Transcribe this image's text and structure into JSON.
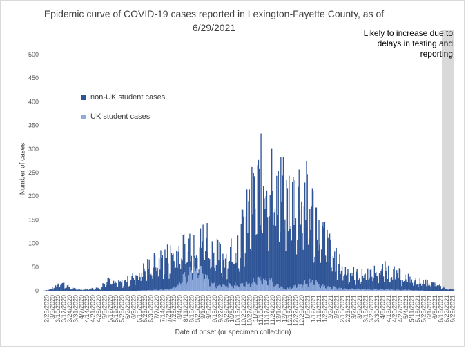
{
  "chart_data": {
    "type": "bar",
    "stacked": true,
    "title": "Epidemic curve of COVID-19 cases reported in Lexington-Fayette County, as of 6/29/2021",
    "ylabel": "Number of cases",
    "xlabel": "Date of onset (or specimen collection)",
    "ylim": [
      0,
      500
    ],
    "y_ticks": [
      0,
      50,
      100,
      150,
      200,
      250,
      300,
      350,
      400,
      450,
      500
    ],
    "x_tick_labels": [
      "2/25/2020",
      "3/3/2020",
      "3/10/2020",
      "3/17/2020",
      "3/24/2020",
      "3/31/2020",
      "4/7/2020",
      "4/14/2020",
      "4/21/2020",
      "4/28/2020",
      "5/5/2020",
      "5/12/2020",
      "5/19/2020",
      "5/26/2020",
      "6/2/2020",
      "6/9/2020",
      "6/16/2020",
      "6/23/2020",
      "6/30/2020",
      "7/7/2020",
      "7/14/2020",
      "7/21/2020",
      "7/28/2020",
      "8/4/2020",
      "8/11/2020",
      "8/18/2020",
      "8/25/2020",
      "9/1/2020",
      "9/8/2020",
      "9/15/2020",
      "9/22/2020",
      "9/29/2020",
      "10/6/2020",
      "10/13/2020",
      "10/20/2020",
      "10/27/2020",
      "11/3/2020",
      "11/10/2020",
      "11/17/2020",
      "11/24/2020",
      "12/1/2020",
      "12/8/2020",
      "12/15/2020",
      "12/22/2020",
      "12/29/2020",
      "1/5/2021",
      "1/12/2021",
      "1/19/2021",
      "1/26/2021",
      "2/2/2021",
      "2/9/2021",
      "2/16/2021",
      "2/23/2021",
      "3/2/2021",
      "3/9/2021",
      "3/16/2021",
      "3/23/2021",
      "3/30/2021",
      "4/6/2021",
      "4/13/2021",
      "4/20/2021",
      "4/27/2021",
      "5/4/2021",
      "5/11/2021",
      "5/18/2021",
      "5/25/2021",
      "6/1/2021",
      "6/8/2021",
      "6/15/2021",
      "6/22/2021",
      "6/29/2021"
    ],
    "series": [
      {
        "name": "non-UK student cases",
        "color": "#2f5597",
        "weekly_values": [
          0,
          2,
          8,
          18,
          10,
          5,
          3,
          3,
          4,
          5,
          6,
          30,
          15,
          15,
          18,
          25,
          32,
          40,
          48,
          55,
          62,
          68,
          72,
          80,
          85,
          95,
          110,
          90,
          120,
          85,
          75,
          70,
          75,
          90,
          110,
          140,
          180,
          200,
          240,
          230,
          210,
          200,
          180,
          190,
          200,
          195,
          175,
          150,
          120,
          95,
          70,
          55,
          42,
          38,
          33,
          32,
          35,
          38,
          40,
          42,
          40,
          35,
          28,
          25,
          20,
          18,
          16,
          14,
          12,
          8,
          4
        ]
      },
      {
        "name": "UK student cases",
        "color": "#8faadc",
        "weekly_values": [
          0,
          0,
          0,
          0,
          0,
          0,
          0,
          0,
          0,
          0,
          0,
          0,
          0,
          0,
          0,
          0,
          0,
          1,
          1,
          2,
          2,
          3,
          5,
          12,
          25,
          40,
          55,
          50,
          35,
          18,
          12,
          12,
          14,
          14,
          14,
          15,
          20,
          25,
          30,
          25,
          15,
          8,
          5,
          8,
          14,
          18,
          20,
          18,
          12,
          10,
          8,
          6,
          5,
          4,
          4,
          4,
          3,
          3,
          3,
          3,
          3,
          2,
          2,
          2,
          1,
          1,
          0,
          0,
          0,
          0,
          0
        ]
      }
    ],
    "legend": "left"
  },
  "labels": {
    "title": "Epidemic curve of COVID-19 cases reported in Lexington-Fayette County, as of 6/29/2021",
    "title_line1": "Epidemic curve of COVID-19 cases reported in Lexington-Fayette County, as of",
    "title_line2": "6/29/2021",
    "note": "Likely to increase due to delays in testing and reporting",
    "ylabel": "Number of cases",
    "xlabel": "Date of onset (or specimen collection)",
    "legend_nonuk": "non-UK student cases",
    "legend_uk": "UK student cases"
  },
  "colors": {
    "nonuk": "#2f5597",
    "uk": "#8faadc",
    "shade": "#d9d9d9"
  }
}
